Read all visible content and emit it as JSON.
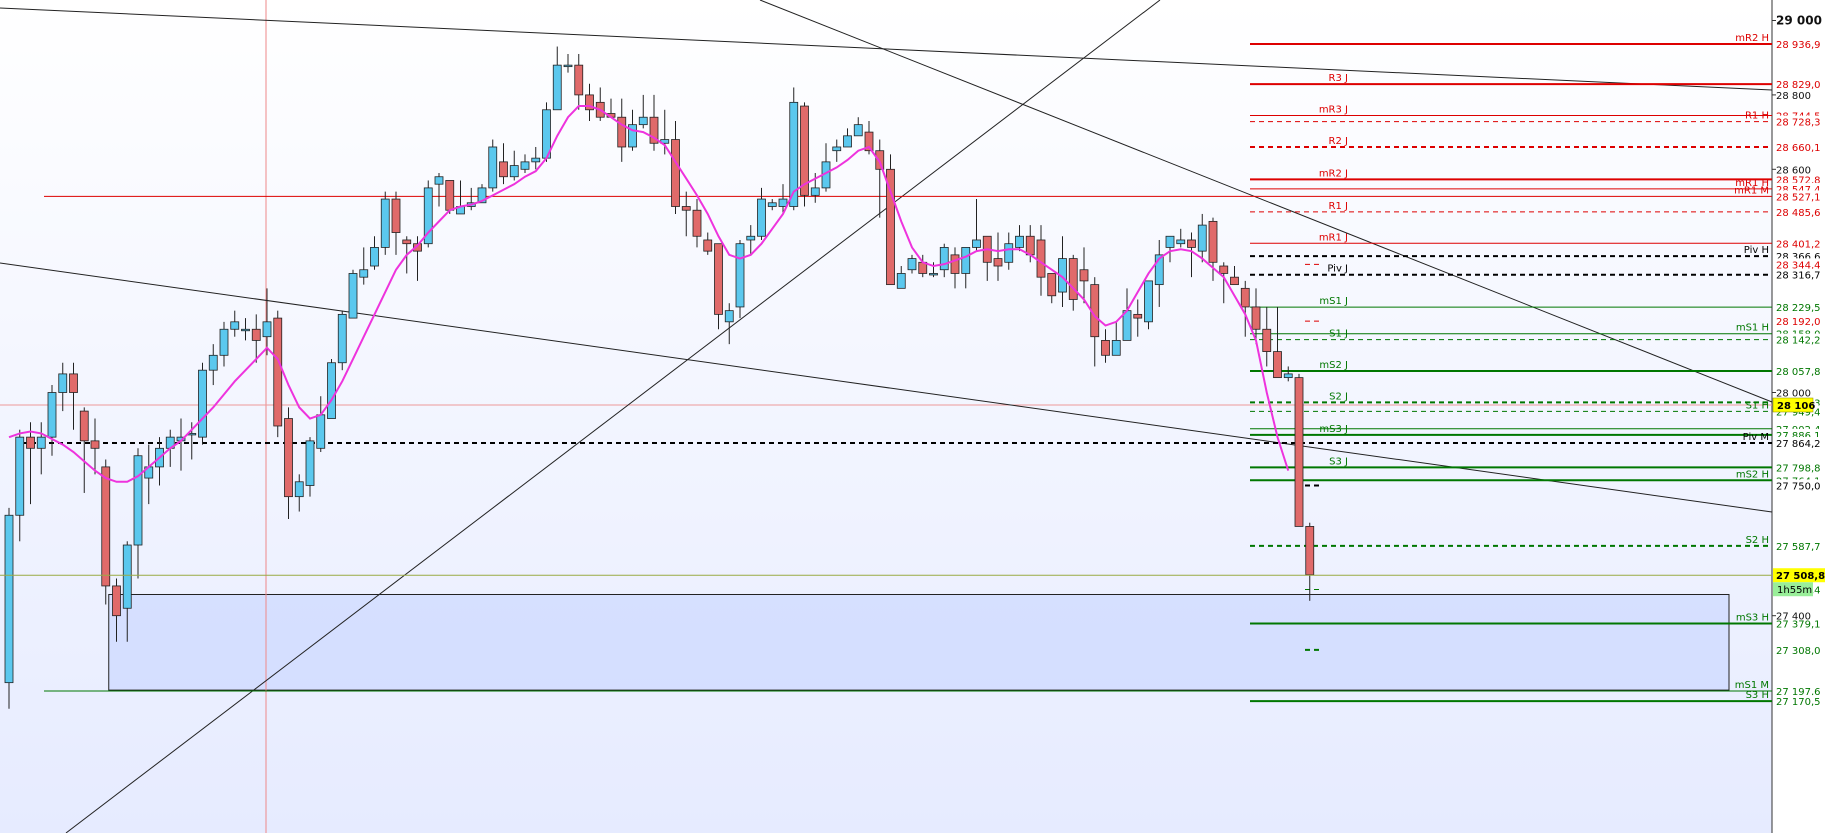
{
  "chart_data": {
    "type": "candlestick",
    "instrument_timeframe": "1h55m",
    "current_price": "27 508,8",
    "crosshair_price": "28 106",
    "ylim": [
      27100,
      29050
    ],
    "y_ticks": [
      "29 000",
      "28 800",
      "28 600",
      "28 000",
      "27 400"
    ],
    "colors": {
      "up": "#5bc8ee",
      "down": "#e06a6a",
      "ma": "#ee33dd",
      "red_level": "#dd0000",
      "green_level": "#007700",
      "pivot": "#000000"
    },
    "candles": [
      [
        27220,
        27670,
        27150,
        27690
      ],
      [
        27670,
        27880,
        27600,
        27900
      ],
      [
        27880,
        27850,
        27700,
        27920
      ],
      [
        27850,
        27880,
        27780,
        27920
      ],
      [
        27880,
        28000,
        27830,
        28020
      ],
      [
        28000,
        28050,
        27950,
        28080
      ],
      [
        28050,
        28000,
        27900,
        28080
      ],
      [
        27950,
        27870,
        27730,
        27960
      ],
      [
        27870,
        27850,
        27780,
        27930
      ],
      [
        27800,
        27480,
        27430,
        27820
      ],
      [
        27480,
        27400,
        27330,
        27500
      ],
      [
        27420,
        27590,
        27330,
        27600
      ],
      [
        27590,
        27830,
        27500,
        27850
      ],
      [
        27770,
        27800,
        27700,
        27860
      ],
      [
        27800,
        27850,
        27750,
        27880
      ],
      [
        27850,
        27880,
        27800,
        27900
      ],
      [
        27870,
        27880,
        27790,
        27930
      ],
      [
        27890,
        27890,
        27820,
        27920
      ],
      [
        27880,
        28060,
        27860,
        28080
      ],
      [
        28060,
        28100,
        28020,
        28130
      ],
      [
        28100,
        28170,
        28070,
        28190
      ],
      [
        28170,
        28190,
        28150,
        28220
      ],
      [
        28170,
        28170,
        28140,
        28200
      ],
      [
        28170,
        28140,
        28080,
        28210
      ],
      [
        28150,
        28190,
        28100,
        28280
      ],
      [
        28200,
        27910,
        27880,
        28220
      ],
      [
        27930,
        27720,
        27660,
        27960
      ],
      [
        27720,
        27760,
        27680,
        27780
      ],
      [
        27750,
        27870,
        27720,
        27880
      ],
      [
        27850,
        27940,
        27840,
        27990
      ],
      [
        27930,
        28080,
        27930,
        28090
      ],
      [
        28080,
        28210,
        28060,
        28220
      ],
      [
        28200,
        28320,
        28200,
        28330
      ],
      [
        28310,
        28330,
        28290,
        28390
      ],
      [
        28340,
        28390,
        28330,
        28420
      ],
      [
        28390,
        28520,
        28370,
        28540
      ],
      [
        28520,
        28430,
        28370,
        28540
      ],
      [
        28410,
        28400,
        28320,
        28420
      ],
      [
        28400,
        28380,
        28300,
        28420
      ],
      [
        28400,
        28550,
        28390,
        28570
      ],
      [
        28560,
        28580,
        28500,
        28590
      ],
      [
        28570,
        28490,
        28480,
        28570
      ],
      [
        28480,
        28500,
        28480,
        28570
      ],
      [
        28500,
        28510,
        28490,
        28550
      ],
      [
        28510,
        28550,
        28510,
        28560
      ],
      [
        28550,
        28660,
        28540,
        28680
      ],
      [
        28620,
        28580,
        28560,
        28670
      ],
      [
        28580,
        28610,
        28570,
        28650
      ],
      [
        28600,
        28620,
        28590,
        28640
      ],
      [
        28620,
        28630,
        28600,
        28660
      ],
      [
        28630,
        28760,
        28620,
        28780
      ],
      [
        28760,
        28880,
        28760,
        28930
      ],
      [
        28880,
        28880,
        28860,
        28910
      ],
      [
        28880,
        28800,
        28760,
        28910
      ],
      [
        28800,
        28760,
        28730,
        28830
      ],
      [
        28780,
        28740,
        28730,
        28820
      ],
      [
        28750,
        28740,
        28740,
        28790
      ],
      [
        28740,
        28660,
        28620,
        28790
      ],
      [
        28660,
        28720,
        28650,
        28760
      ],
      [
        28720,
        28740,
        28710,
        28800
      ],
      [
        28740,
        28670,
        28650,
        28800
      ],
      [
        28670,
        28680,
        28640,
        28760
      ],
      [
        28680,
        28500,
        28480,
        28730
      ],
      [
        28500,
        28490,
        28420,
        28540
      ],
      [
        28490,
        28420,
        28390,
        28520
      ],
      [
        28410,
        28380,
        28370,
        28430
      ],
      [
        28400,
        28210,
        28170,
        28400
      ],
      [
        28190,
        28220,
        28130,
        28240
      ],
      [
        28230,
        28400,
        28200,
        28410
      ],
      [
        28410,
        28420,
        28370,
        28450
      ],
      [
        28420,
        28520,
        28410,
        28550
      ],
      [
        28500,
        28510,
        28490,
        28520
      ],
      [
        28500,
        28520,
        28480,
        28560
      ],
      [
        28500,
        28780,
        28490,
        28820
      ],
      [
        28770,
        28530,
        28500,
        28780
      ],
      [
        28530,
        28550,
        28510,
        28590
      ],
      [
        28550,
        28620,
        28540,
        28670
      ],
      [
        28650,
        28660,
        28620,
        28680
      ],
      [
        28660,
        28690,
        28660,
        28710
      ],
      [
        28690,
        28720,
        28700,
        28740
      ],
      [
        28700,
        28650,
        28640,
        28730
      ],
      [
        28650,
        28600,
        28470,
        28680
      ],
      [
        28600,
        28290,
        28290,
        28640
      ],
      [
        28280,
        28320,
        28290,
        28340
      ],
      [
        28330,
        28360,
        28320,
        28370
      ],
      [
        28350,
        28320,
        28310,
        28370
      ],
      [
        28320,
        28320,
        28310,
        28350
      ],
      [
        28330,
        28390,
        28310,
        28400
      ],
      [
        28370,
        28320,
        28280,
        28390
      ],
      [
        28320,
        28390,
        28280,
        28390
      ],
      [
        28390,
        28410,
        28380,
        28520
      ],
      [
        28420,
        28350,
        28300,
        28420
      ],
      [
        28360,
        28340,
        28300,
        28430
      ],
      [
        28350,
        28400,
        28330,
        28430
      ],
      [
        28390,
        28420,
        28380,
        28450
      ],
      [
        28420,
        28370,
        28350,
        28450
      ],
      [
        28410,
        28310,
        28260,
        28450
      ],
      [
        28320,
        28260,
        28240,
        28320
      ],
      [
        28270,
        28360,
        28230,
        28420
      ],
      [
        28360,
        28250,
        28220,
        28370
      ],
      [
        28330,
        28300,
        28240,
        28390
      ],
      [
        28290,
        28150,
        28070,
        28310
      ],
      [
        28140,
        28100,
        28080,
        28170
      ],
      [
        28100,
        28140,
        28100,
        28190
      ],
      [
        28140,
        28220,
        28140,
        28280
      ],
      [
        28210,
        28200,
        28150,
        28250
      ],
      [
        28190,
        28300,
        28170,
        28300
      ],
      [
        28290,
        28370,
        28230,
        28410
      ],
      [
        28390,
        28420,
        28350,
        28420
      ],
      [
        28400,
        28410,
        28390,
        28440
      ],
      [
        28410,
        28390,
        28310,
        28430
      ],
      [
        28380,
        28450,
        28350,
        28480
      ],
      [
        28460,
        28350,
        28300,
        28470
      ],
      [
        28340,
        28320,
        28240,
        28350
      ],
      [
        28310,
        28290,
        28290,
        28340
      ],
      [
        28280,
        28230,
        28150,
        28300
      ],
      [
        28230,
        28170,
        28130,
        28280
      ],
      [
        28170,
        28110,
        28070,
        28230
      ],
      [
        28110,
        28040,
        28040,
        28230
      ],
      [
        28040,
        28050,
        28030,
        28070
      ],
      [
        28040,
        27640,
        27640,
        28050
      ],
      [
        27640,
        27510,
        27440,
        27650
      ]
    ],
    "moving_average": [
      27880,
      27890,
      27895,
      27890,
      27875,
      27860,
      27840,
      27815,
      27790,
      27770,
      27760,
      27760,
      27775,
      27800,
      27825,
      27850,
      27870,
      27900,
      27930,
      27960,
      27995,
      28030,
      28060,
      28090,
      28120,
      28090,
      28020,
      27960,
      27930,
      27940,
      27980,
      28030,
      28090,
      28150,
      28210,
      28270,
      28330,
      28370,
      28395,
      28430,
      28460,
      28490,
      28500,
      28505,
      28515,
      28530,
      28545,
      28560,
      28580,
      28595,
      28630,
      28690,
      28740,
      28770,
      28770,
      28760,
      28740,
      28720,
      28705,
      28700,
      28685,
      28665,
      28620,
      28575,
      28530,
      28480,
      28420,
      28370,
      28360,
      28370,
      28400,
      28440,
      28480,
      28540,
      28560,
      28575,
      28590,
      28605,
      28625,
      28650,
      28660,
      28620,
      28540,
      28460,
      28390,
      28350,
      28340,
      28345,
      28355,
      28365,
      28380,
      28385,
      28380,
      28385,
      28385,
      28370,
      28350,
      28330,
      28310,
      28280,
      28250,
      28205,
      28180,
      28190,
      28220,
      28270,
      28320,
      28360,
      28380,
      28385,
      28380,
      28360,
      28335,
      28310,
      28260,
      28210,
      28140,
      28000,
      27880,
      27790
    ],
    "price_levels": [
      {
        "label": "mR2 H",
        "value_label": "28 936,9",
        "price": 28936.9,
        "color": "red_level",
        "style": "solid",
        "x_start": 1250,
        "width": 2
      },
      {
        "label": "R3 J",
        "value_label": "28 829,0",
        "price": 28829.0,
        "color": "red_level",
        "style": "solid",
        "x_start": 1250,
        "width": 2
      },
      {
        "label": "mR3 J",
        "value_label": "28 744,5",
        "price": 28744.5,
        "color": "red_level",
        "style": "solid",
        "x_start": 1250,
        "width": 1
      },
      {
        "label": "R1 H",
        "value_label": "28 728,3",
        "price": 28728.3,
        "color": "red_level",
        "style": "dashed",
        "x_start": 1250,
        "width": 1
      },
      {
        "label": "R2 J",
        "value_label": "28 660,1",
        "price": 28660.1,
        "color": "red_level",
        "style": "dashed",
        "x_start": 1250,
        "width": 2
      },
      {
        "label": "mR2 J",
        "value_label": "28 572,8",
        "price": 28572.8,
        "color": "red_level",
        "style": "solid",
        "x_start": 1250,
        "width": 2
      },
      {
        "label": "mR1 H",
        "value_label": "28 547,4",
        "price": 28547.4,
        "color": "red_level",
        "style": "solid",
        "x_start": 1250,
        "width": 1
      },
      {
        "label": "mR1 M",
        "value_label": "28 527,1",
        "price": 28527.1,
        "color": "red_level",
        "style": "solid",
        "x_start": 44,
        "width": 1
      },
      {
        "label": "R1 J",
        "value_label": "28 485,6",
        "price": 28485.6,
        "color": "red_level",
        "style": "dashed",
        "x_start": 1250,
        "width": 1
      },
      {
        "label": "mR1 J",
        "value_label": "28 401,2",
        "price": 28401.2,
        "color": "red_level",
        "style": "solid",
        "x_start": 1250,
        "width": 1
      },
      {
        "label": "Piv H",
        "value_label": "28 366,6",
        "price": 28366.6,
        "color": "pivot",
        "style": "dashed",
        "x_start": 1250,
        "width": 2
      },
      {
        "label": "",
        "value_label": "28 344,4",
        "price": 28344.4,
        "color": "red_level",
        "style": "dashed",
        "x_start": 1305,
        "width": 1
      },
      {
        "label": "Piv J",
        "value_label": "28 316,7",
        "price": 28316.7,
        "color": "pivot",
        "style": "dashed",
        "x_start": 1250,
        "width": 2
      },
      {
        "label": "mS1 J",
        "value_label": "28 229,5",
        "price": 28229.5,
        "color": "green_level",
        "style": "solid",
        "x_start": 1250,
        "width": 1
      },
      {
        "label": "",
        "value_label": "28 192,0",
        "price": 28192.0,
        "color": "red_level",
        "style": "dashed",
        "x_start": 1305,
        "width": 1
      },
      {
        "label": "mS1 H",
        "value_label": "28 158,0",
        "price": 28158.0,
        "color": "green_level",
        "style": "solid",
        "x_start": 1250,
        "width": 1
      },
      {
        "label": "S1 J",
        "value_label": "28 142,2",
        "price": 28142.2,
        "color": "green_level",
        "style": "dashed",
        "x_start": 1250,
        "width": 1
      },
      {
        "label": "mS2 J",
        "value_label": "28 057,8",
        "price": 28057.8,
        "color": "green_level",
        "style": "solid",
        "x_start": 1250,
        "width": 2
      },
      {
        "label": "S2 J",
        "value_label": "27 973,3",
        "price": 27973.3,
        "color": "green_level",
        "style": "dashed",
        "x_start": 1250,
        "width": 2
      },
      {
        "label": "S1 H",
        "value_label": "27 949,4",
        "price": 27949.4,
        "color": "green_level",
        "style": "dashed",
        "x_start": 1250,
        "width": 1
      },
      {
        "label": "",
        "value_label": "27 902,4",
        "price": 27902.4,
        "color": "green_level",
        "style": "solid",
        "x_start": 1250,
        "width": 1
      },
      {
        "label": "mS3 J",
        "value_label": "27 886,1",
        "price": 27886.1,
        "color": "green_level",
        "style": "solid",
        "x_start": 1250,
        "width": 2
      },
      {
        "label": "Piv M",
        "value_label": "27 864,2",
        "price": 27864.2,
        "color": "pivot",
        "style": "dashed",
        "x_start": 22,
        "width": 2
      },
      {
        "label": "S3 J",
        "value_label": "27 798,8",
        "price": 27798.8,
        "color": "green_level",
        "style": "solid",
        "x_start": 1250,
        "width": 2
      },
      {
        "label": "mS2 H",
        "value_label": "27 764,1",
        "price": 27764.1,
        "color": "green_level",
        "style": "solid",
        "x_start": 1250,
        "width": 2
      },
      {
        "label": "",
        "value_label": "27 750,0",
        "price": 27750.0,
        "color": "pivot",
        "style": "dashed",
        "x_start": 1305,
        "width": 2
      },
      {
        "label": "S2 H",
        "value_label": "27 587,7",
        "price": 27587.7,
        "color": "green_level",
        "style": "dashed",
        "x_start": 1250,
        "width": 2
      },
      {
        "label": "",
        "value_label": "27 470,4",
        "price": 27470.4,
        "color": "green_level",
        "style": "dashed",
        "x_start": 1305,
        "width": 1
      },
      {
        "label": "mS3 H",
        "value_label": "27 379,1",
        "price": 27379.1,
        "color": "green_level",
        "style": "solid",
        "x_start": 1250,
        "width": 2
      },
      {
        "label": "",
        "value_label": "27 308,0",
        "price": 27308.0,
        "color": "green_level",
        "style": "dashed",
        "x_start": 1305,
        "width": 2
      },
      {
        "label": "mS1 M",
        "value_label": "27 197,6",
        "price": 27197.6,
        "color": "green_level",
        "style": "solid",
        "x_start": 44,
        "width": 1
      },
      {
        "label": "S3 H",
        "value_label": "27 170,5",
        "price": 27170.5,
        "color": "green_level",
        "style": "solid",
        "x_start": 1250,
        "width": 2
      }
    ],
    "support_zone": {
      "top": 27457,
      "bottom": 27200,
      "start_candle": 9,
      "end_candle": 160
    },
    "gridlines": "off"
  }
}
